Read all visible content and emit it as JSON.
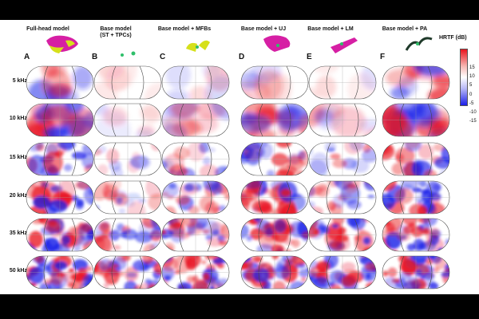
{
  "columns": [
    {
      "letter": "A",
      "title": "Full-head model"
    },
    {
      "letter": "B",
      "title": "Base model\n(ST + TPCs)"
    },
    {
      "letter": "C",
      "title": "Base model + MFBs"
    },
    {
      "letter": "D",
      "title": "Base model + UJ"
    },
    {
      "letter": "E",
      "title": "Base model + LM"
    },
    {
      "letter": "F",
      "title": "Base model + PA"
    }
  ],
  "rows": [
    "5 kHz",
    "10 kHz",
    "15 kHz",
    "20 kHz",
    "35 kHz",
    "50 kHz"
  ],
  "colorbar": {
    "label": "HRTF (dB)",
    "ticks": [
      "15",
      "10",
      "5",
      "0",
      "-5",
      "-10",
      "-15"
    ],
    "min": -15,
    "max": 15
  },
  "colors": {
    "positive": "#e8131d",
    "negative": "#1a1ee8",
    "neutral": "#ffffff",
    "magenta": "#d61fa4",
    "yellow": "#d6e01b",
    "green": "#2fbf6a"
  },
  "intensity": [
    [
      0.7,
      0.15,
      0.3,
      0.45,
      0.2,
      0.9
    ],
    [
      0.8,
      0.25,
      0.45,
      0.75,
      0.35,
      0.8
    ],
    [
      0.9,
      0.4,
      0.6,
      0.85,
      0.55,
      0.85
    ],
    [
      0.95,
      0.5,
      0.7,
      0.9,
      0.7,
      0.9
    ],
    [
      1.0,
      0.7,
      0.85,
      0.95,
      0.85,
      0.95
    ],
    [
      1.0,
      0.8,
      0.9,
      1.0,
      0.9,
      0.95
    ]
  ]
}
